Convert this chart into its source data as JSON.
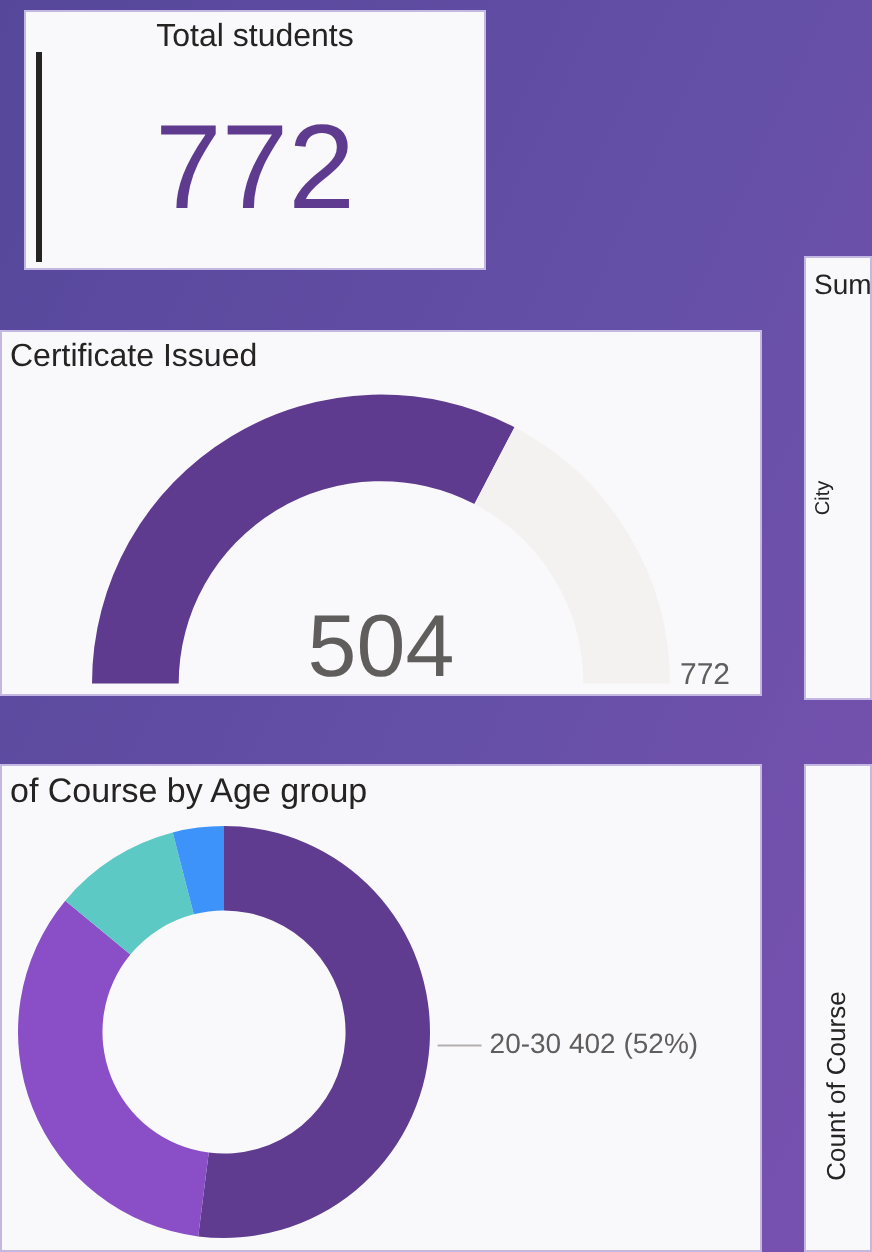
{
  "chart_data": [
    {
      "type": "other",
      "title": "Total students",
      "values": [
        772
      ],
      "data_labels": true
    },
    {
      "type": "donut",
      "title": "Certificate Issued",
      "categories": [
        null,
        null
      ],
      "values": [
        504,
        268
      ],
      "colors": [
        "#5f3b8f",
        "#f3f2f1"
      ],
      "value_labels": [
        "504",
        null
      ],
      "annotations": [
        "772"
      ]
    },
    {
      "type": "other",
      "title": "Sum",
      "ylabel": "City"
    },
    {
      "type": "donut",
      "title": "of Course by Age group",
      "categories": [
        "20-30",
        null,
        null,
        null
      ],
      "values": [
        52,
        34,
        10,
        4
      ],
      "colors": [
        "#603c90",
        "#8a4ec6",
        "#5dc9c4",
        "#3e93fa"
      ],
      "value_labels": [
        "402 (52%)",
        null,
        null,
        null
      ]
    },
    {
      "type": "other",
      "ylabel": "Count of Course"
    }
  ]
}
